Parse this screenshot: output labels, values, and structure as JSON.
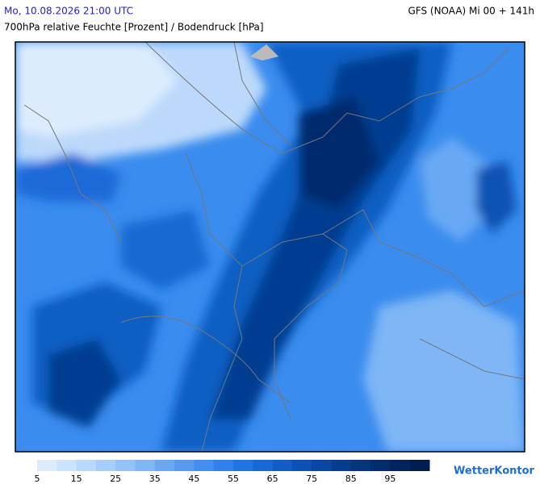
{
  "header": {
    "left": "Mo, 10.08.2026 21:00 UTC",
    "right": "GFS (NOAA) Mi 00 + 141h",
    "subtitle": "700hPa relative Feuchte [Prozent] / Bodendruck [hPa]"
  },
  "legend": {
    "ticks": [
      5,
      15,
      25,
      35,
      45,
      55,
      65,
      75,
      85,
      95
    ],
    "colors": [
      "#dcecfd",
      "#cbe3fc",
      "#b9d9fb",
      "#a6cefa",
      "#92c2f8",
      "#7eb6f6",
      "#69a9f4",
      "#559cf1",
      "#418fee",
      "#2e82ea",
      "#2076e0",
      "#166ad2",
      "#0f5ec3",
      "#0a53b3",
      "#0748a2",
      "#053e91",
      "#04357f",
      "#032c6e",
      "#02245e",
      "#021c4f"
    ]
  },
  "logo": "WetterKontor"
}
